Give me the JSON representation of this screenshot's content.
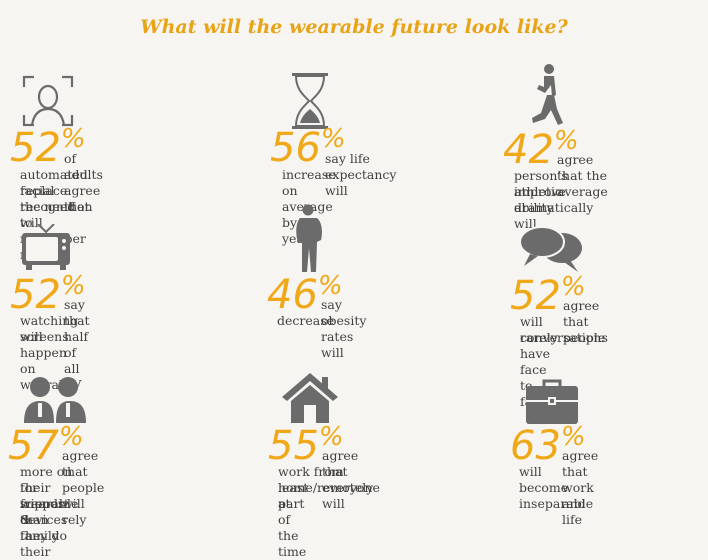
{
  "title": "What will the wearable future look like?",
  "stats": [
    {
      "icon": "face-recognition-icon",
      "number": "52",
      "sign": "%",
      "first": "of adults agree that",
      "rest": [
        "automated facial recognition will",
        "replace the need to remember names"
      ]
    },
    {
      "icon": "hourglass-icon",
      "number": "56",
      "sign": "%",
      "first": "say life expectancy will",
      "rest": [
        "increase on average by 10 years"
      ]
    },
    {
      "icon": "runner-icon",
      "number": "42",
      "sign": "%",
      "first": "agree that the average",
      "rest": [
        "person’s athletic ability will",
        "improve dramatically"
      ]
    },
    {
      "icon": "tv-icon",
      "number": "52",
      "sign": "%",
      "first": "say that half of all TV",
      "rest": [
        "watching will happen on wearable",
        "screens"
      ]
    },
    {
      "icon": "person-icon",
      "number": "46",
      "sign": "%",
      "first": "say obesity rates will",
      "rest": [
        "decrease"
      ]
    },
    {
      "icon": "speech-bubbles-icon",
      "number": "52",
      "sign": "%",
      "first": "agree that people",
      "rest": [
        "will rarely have face to face",
        "conversations"
      ]
    },
    {
      "icon": "people-icon",
      "number": "57",
      "sign": "%",
      "first": "agree that people will rely",
      "rest": [
        "more on their wearable devices",
        "for support than they do their",
        "friends & family"
      ]
    },
    {
      "icon": "house-icon",
      "number": "55",
      "sign": "%",
      "first": "agree that everyone will",
      "rest": [
        "work from home/remotely at",
        "least part of the time"
      ]
    },
    {
      "icon": "briefcase-icon",
      "number": "63",
      "sign": "%",
      "first": "agree that work and life",
      "rest": [
        "will become inseparable"
      ]
    }
  ]
}
